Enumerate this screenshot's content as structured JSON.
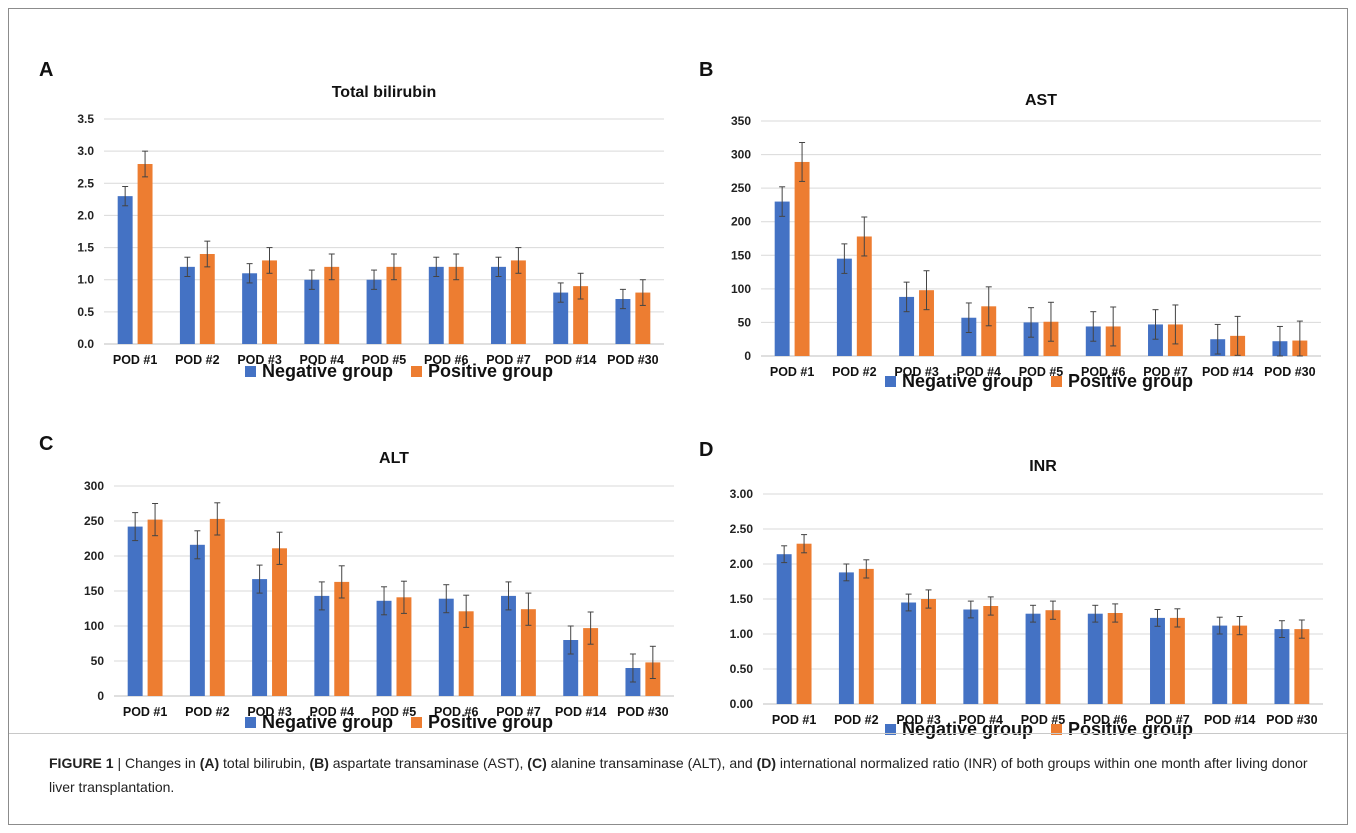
{
  "colors": {
    "negative": "#4472C4",
    "positive": "#ED7D31",
    "grid": "#d9d9d9",
    "error_bar": "#444444"
  },
  "legend": {
    "negative": "Negative group",
    "positive": "Positive group"
  },
  "caption": {
    "label": "FIGURE 1",
    "sep": " | Changes in ",
    "a": "(A)",
    "a_text": " total bilirubin, ",
    "b": "(B)",
    "b_text": " aspartate transaminase (AST), ",
    "c": "(C)",
    "c_text": " alanine transaminase (ALT), and ",
    "d": "(D)",
    "d_text": " international normalized ratio (INR) of both groups within one month after living donor liver transplantation."
  },
  "chart_data": [
    {
      "panel": "A",
      "type": "bar",
      "title": "Total bilirubin",
      "categories": [
        "POD #1",
        "POD #2",
        "POD #3",
        "POD #4",
        "POD #5",
        "POD #6",
        "POD #7",
        "POD #14",
        "POD #30"
      ],
      "ylim": [
        0,
        3.5
      ],
      "ytick_step": 0.5,
      "ytick_decimals": 1,
      "grid": true,
      "legend_position": "bottom",
      "series": [
        {
          "name": "Negative group",
          "values": [
            2.3,
            1.2,
            1.1,
            1.0,
            1.0,
            1.2,
            1.2,
            0.8,
            0.7
          ],
          "errors": [
            0.15,
            0.15,
            0.15,
            0.15,
            0.15,
            0.15,
            0.15,
            0.15,
            0.15
          ]
        },
        {
          "name": "Positive group",
          "values": [
            2.8,
            1.4,
            1.3,
            1.2,
            1.2,
            1.2,
            1.3,
            0.9,
            0.8
          ],
          "errors": [
            0.2,
            0.2,
            0.2,
            0.2,
            0.2,
            0.2,
            0.2,
            0.2,
            0.2
          ]
        }
      ]
    },
    {
      "panel": "B",
      "type": "bar",
      "title": "AST",
      "categories": [
        "POD #1",
        "POD #2",
        "POD #3",
        "POD #4",
        "POD #5",
        "POD #6",
        "POD #7",
        "POD #14",
        "POD #30"
      ],
      "ylim": [
        0,
        350
      ],
      "ytick_step": 50,
      "ytick_decimals": 0,
      "grid": true,
      "legend_position": "bottom",
      "series": [
        {
          "name": "Negative group",
          "values": [
            230,
            145,
            88,
            57,
            50,
            44,
            47,
            25,
            22
          ],
          "errors": [
            22,
            22,
            22,
            22,
            22,
            22,
            22,
            22,
            22
          ]
        },
        {
          "name": "Positive group",
          "values": [
            289,
            178,
            98,
            74,
            51,
            44,
            47,
            30,
            23
          ],
          "errors": [
            29,
            29,
            29,
            29,
            29,
            29,
            29,
            29,
            29
          ]
        }
      ]
    },
    {
      "panel": "C",
      "type": "bar",
      "title": "ALT",
      "categories": [
        "POD #1",
        "POD #2",
        "POD #3",
        "POD #4",
        "POD #5",
        "POD #6",
        "POD #7",
        "POD #14",
        "POD #30"
      ],
      "ylim": [
        0,
        300
      ],
      "ytick_step": 50,
      "ytick_decimals": 0,
      "grid": true,
      "legend_position": "bottom",
      "series": [
        {
          "name": "Negative group",
          "values": [
            242,
            216,
            167,
            143,
            136,
            139,
            143,
            80,
            40
          ],
          "errors": [
            20,
            20,
            20,
            20,
            20,
            20,
            20,
            20,
            20
          ]
        },
        {
          "name": "Positive group",
          "values": [
            252,
            253,
            211,
            163,
            141,
            121,
            124,
            97,
            48
          ],
          "errors": [
            23,
            23,
            23,
            23,
            23,
            23,
            23,
            23,
            23
          ]
        }
      ]
    },
    {
      "panel": "D",
      "type": "bar",
      "title": "INR",
      "categories": [
        "POD #1",
        "POD #2",
        "POD #3",
        "POD #4",
        "POD #5",
        "POD #6",
        "POD #7",
        "POD #14",
        "POD #30"
      ],
      "ylim": [
        0,
        3.0
      ],
      "ytick_step": 0.5,
      "ytick_decimals": 2,
      "grid": true,
      "legend_position": "bottom",
      "series": [
        {
          "name": "Negative group",
          "values": [
            2.14,
            1.88,
            1.45,
            1.35,
            1.29,
            1.29,
            1.23,
            1.12,
            1.07
          ],
          "errors": [
            0.12,
            0.12,
            0.12,
            0.12,
            0.12,
            0.12,
            0.12,
            0.12,
            0.12
          ]
        },
        {
          "name": "Positive group",
          "values": [
            2.29,
            1.93,
            1.5,
            1.4,
            1.34,
            1.3,
            1.23,
            1.12,
            1.07
          ],
          "errors": [
            0.13,
            0.13,
            0.13,
            0.13,
            0.13,
            0.13,
            0.13,
            0.13,
            0.13
          ]
        }
      ]
    }
  ]
}
